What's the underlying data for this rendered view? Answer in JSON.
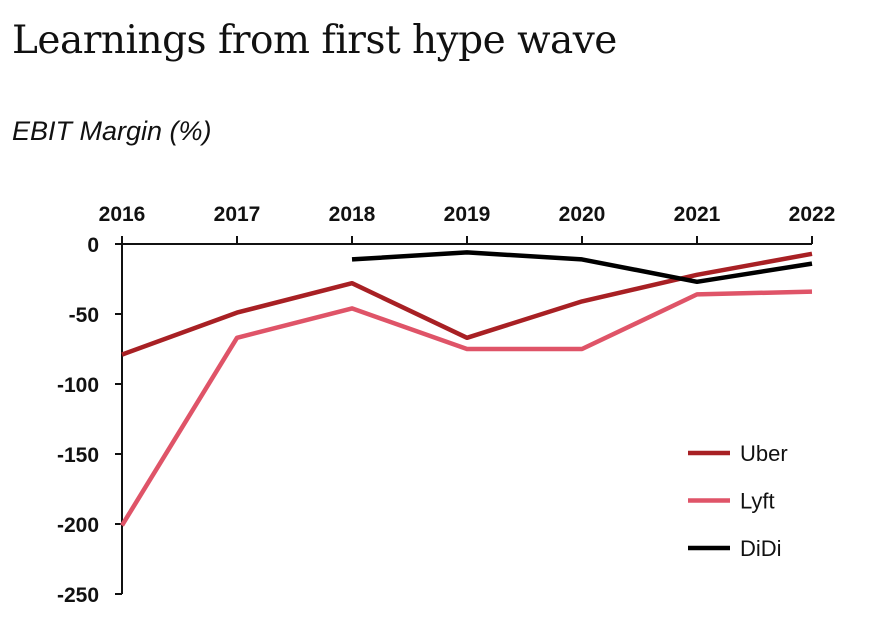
{
  "chart_data": {
    "type": "line",
    "title": "Learnings from first hype wave",
    "subtitle": "EBIT Margin (%)",
    "xlabel": "",
    "ylabel": "EBIT Margin (%)",
    "x": [
      "2016",
      "2017",
      "2018",
      "2019",
      "2020",
      "2021",
      "2022"
    ],
    "yticks": [
      "0",
      "-50",
      "-100",
      "-150",
      "-200",
      "-250"
    ],
    "ytick_values": [
      0,
      -50,
      -100,
      -150,
      -200,
      -250
    ],
    "ylim": [
      -250,
      0
    ],
    "grid": false,
    "legend_position": "bottom-right",
    "series": [
      {
        "name": "Uber",
        "color": "#a82024",
        "values": [
          -79,
          -49,
          -28,
          -67,
          -41,
          -22,
          -7
        ]
      },
      {
        "name": "Lyft",
        "color": "#df5468",
        "values": [
          -201,
          -67,
          -46,
          -75,
          -75,
          -36,
          -34
        ]
      },
      {
        "name": "DiDi",
        "color": "#000000",
        "values": [
          null,
          null,
          -11,
          -6,
          -11,
          -27,
          -14
        ]
      }
    ]
  }
}
